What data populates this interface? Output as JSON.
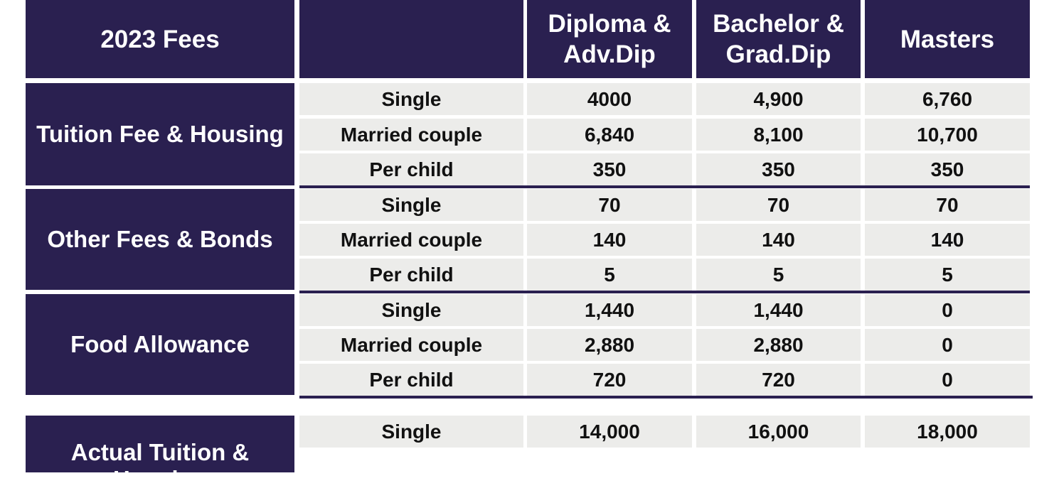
{
  "header": {
    "title": "2023 Fees",
    "blank": "",
    "col1": "Diploma & Adv.Dip",
    "col2": "Bachelor & Grad.Dip",
    "col3": "Masters"
  },
  "groups": [
    {
      "name": "Tuition Fee & Housing",
      "rows": [
        {
          "label": "Single",
          "values": [
            "4000",
            "4,900",
            "6,760"
          ]
        },
        {
          "label": "Married couple",
          "values": [
            "6,840",
            "8,100",
            "10,700"
          ]
        },
        {
          "label": "Per child",
          "values": [
            "350",
            "350",
            "350"
          ]
        }
      ]
    },
    {
      "name": "Other Fees & Bonds",
      "rows": [
        {
          "label": "Single",
          "values": [
            "70",
            "70",
            "70"
          ]
        },
        {
          "label": "Married couple",
          "values": [
            "140",
            "140",
            "140"
          ]
        },
        {
          "label": "Per child",
          "values": [
            "5",
            "5",
            "5"
          ]
        }
      ]
    },
    {
      "name": "Food Allowance",
      "rows": [
        {
          "label": "Single",
          "values": [
            "1,440",
            "1,440",
            "0"
          ]
        },
        {
          "label": "Married couple",
          "values": [
            "2,880",
            "2,880",
            "0"
          ]
        },
        {
          "label": "Per child",
          "values": [
            "720",
            "720",
            "0"
          ]
        }
      ]
    },
    {
      "name": "Actual Tuition & Housing",
      "rows": [
        {
          "label": "Single",
          "values": [
            "14,000",
            "16,000",
            "18,000"
          ]
        }
      ]
    }
  ],
  "colors": {
    "header_bg": "#2a2050",
    "cell_bg": "#ececea",
    "text": "#111111"
  }
}
